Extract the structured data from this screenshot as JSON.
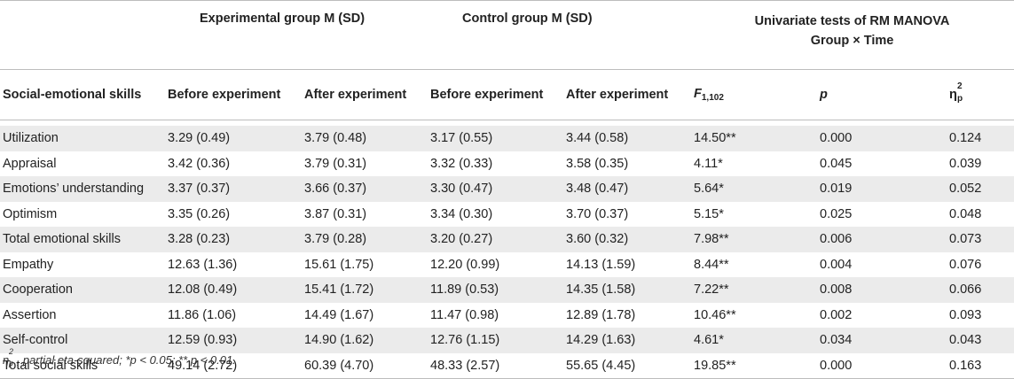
{
  "group_headers": {
    "experimental": "Experimental group M (SD)",
    "control": "Control group M (SD)",
    "tests_line1": "Univariate tests of RM MANOVA",
    "tests_line2": "Group × Time"
  },
  "columns": {
    "skills": "Social-emotional skills",
    "exp_before": "Before experiment",
    "exp_after": "After experiment",
    "ctl_before": "Before experiment",
    "ctl_after": "After experiment",
    "f_main": "F",
    "f_sub": "1,102",
    "p": "p",
    "eta": "η",
    "eta_sup": "2",
    "eta_sub": "p"
  },
  "rows": [
    {
      "skill": "Utilization",
      "eb": "3.29 (0.49)",
      "ea": "3.79 (0.48)",
      "cb": "3.17 (0.55)",
      "ca": "3.44 (0.58)",
      "f": "14.50**",
      "p": "0.000",
      "eta": "0.124"
    },
    {
      "skill": "Appraisal",
      "eb": "3.42 (0.36)",
      "ea": "3.79 (0.31)",
      "cb": "3.32 (0.33)",
      "ca": "3.58 (0.35)",
      "f": "4.11*",
      "p": "0.045",
      "eta": "0.039"
    },
    {
      "skill": "Emotions’ understanding",
      "eb": "3.37 (0.37)",
      "ea": "3.66 (0.37)",
      "cb": "3.30 (0.47)",
      "ca": "3.48 (0.47)",
      "f": "5.64*",
      "p": "0.019",
      "eta": "0.052"
    },
    {
      "skill": "Optimism",
      "eb": "3.35 (0.26)",
      "ea": "3.87 (0.31)",
      "cb": "3.34 (0.30)",
      "ca": "3.70 (0.37)",
      "f": "5.15*",
      "p": "0.025",
      "eta": "0.048"
    },
    {
      "skill": "Total emotional skills",
      "eb": "3.28 (0.23)",
      "ea": "3.79 (0.28)",
      "cb": "3.20 (0.27)",
      "ca": "3.60 (0.32)",
      "f": "7.98**",
      "p": "0.006",
      "eta": "0.073"
    },
    {
      "skill": "Empathy",
      "eb": "12.63 (1.36)",
      "ea": "15.61 (1.75)",
      "cb": "12.20 (0.99)",
      "ca": "14.13 (1.59)",
      "f": "8.44**",
      "p": "0.004",
      "eta": "0.076"
    },
    {
      "skill": "Cooperation",
      "eb": "12.08 (0.49)",
      "ea": "15.41 (1.72)",
      "cb": "11.89 (0.53)",
      "ca": "14.35 (1.58)",
      "f": "7.22**",
      "p": "0.008",
      "eta": "0.066"
    },
    {
      "skill": "Assertion",
      "eb": "11.86 (1.06)",
      "ea": "14.49 (1.67)",
      "cb": "11.47 (0.98)",
      "ca": "12.89 (1.78)",
      "f": "10.46**",
      "p": "0.002",
      "eta": "0.093"
    },
    {
      "skill": "Self-control",
      "eb": "12.59 (0.93)",
      "ea": "14.90 (1.62)",
      "cb": "12.76 (1.15)",
      "ca": "14.29 (1.63)",
      "f": "4.61*",
      "p": "0.034",
      "eta": "0.043"
    },
    {
      "skill": "Total social skills",
      "eb": "49.14 (2.72)",
      "ea": "60.39 (4.70)",
      "cb": "48.33 (2.57)",
      "ca": "55.65 (4.45)",
      "f": "19.85**",
      "p": "0.000",
      "eta": "0.163"
    }
  ],
  "footnote": {
    "eta": "η",
    "eta_sup": "2",
    "eta_sub": "p",
    "text": ", partial eta-squared; *p < 0.05; ** p < 0.01."
  }
}
